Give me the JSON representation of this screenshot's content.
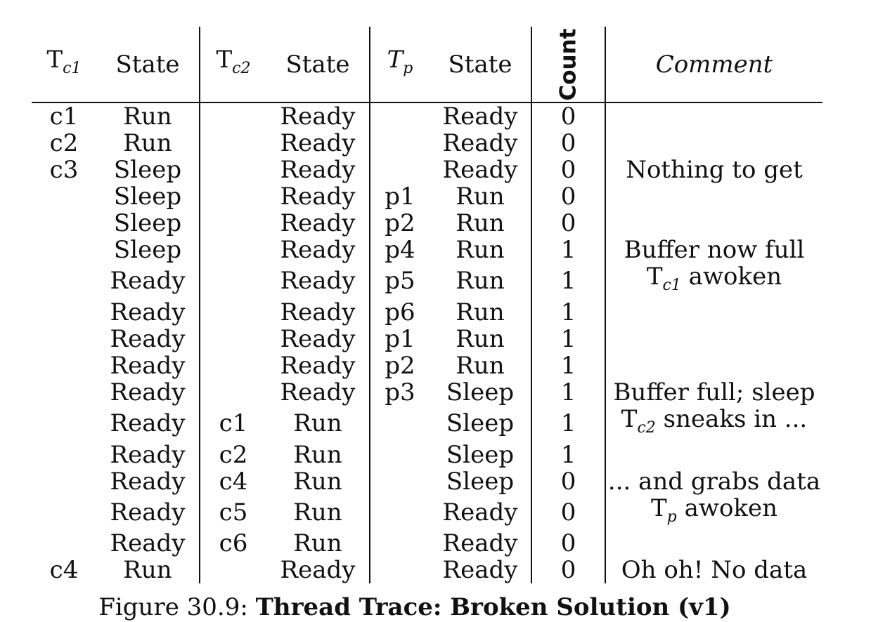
{
  "table": {
    "headers": [
      "Tc1",
      "State",
      "Tc2",
      "State",
      "Tp",
      "State",
      "Count",
      "Comment"
    ],
    "rows": [
      [
        "c1",
        "Run",
        "",
        "Ready",
        "",
        "Ready",
        "0",
        ""
      ],
      [
        "c2",
        "Run",
        "",
        "Ready",
        "",
        "Ready",
        "0",
        ""
      ],
      [
        "c3",
        "Sleep",
        "",
        "Ready",
        "",
        "Ready",
        "0",
        "Nothing to get"
      ],
      [
        "",
        "Sleep",
        "",
        "Ready",
        "p1",
        "Run",
        "0",
        ""
      ],
      [
        "",
        "Sleep",
        "",
        "Ready",
        "p2",
        "Run",
        "0",
        ""
      ],
      [
        "",
        "Sleep",
        "",
        "Ready",
        "p4",
        "Run",
        "1",
        "Buffer now full"
      ],
      [
        "",
        "Ready",
        "",
        "Ready",
        "p5",
        "Run",
        "1",
        "Tc1 awoken"
      ],
      [
        "",
        "Ready",
        "",
        "Ready",
        "p6",
        "Run",
        "1",
        ""
      ],
      [
        "",
        "Ready",
        "",
        "Ready",
        "p1",
        "Run",
        "1",
        ""
      ],
      [
        "",
        "Ready",
        "",
        "Ready",
        "p2",
        "Run",
        "1",
        ""
      ],
      [
        "",
        "Ready",
        "",
        "Ready",
        "p3",
        "Sleep",
        "1",
        "Buffer full; sleep"
      ],
      [
        "",
        "Ready",
        "c1",
        "Run",
        "",
        "Sleep",
        "1",
        "Tc2 sneaks in ..."
      ],
      [
        "",
        "Ready",
        "c2",
        "Run",
        "",
        "Sleep",
        "1",
        ""
      ],
      [
        "",
        "Ready",
        "c4",
        "Run",
        "",
        "Sleep",
        "0",
        "... and grabs data"
      ],
      [
        "",
        "Ready",
        "c5",
        "Run",
        "",
        "Ready",
        "0",
        "Tp awoken"
      ],
      [
        "",
        "Ready",
        "c6",
        "Run",
        "",
        "Ready",
        "0",
        ""
      ],
      [
        "c4",
        "Run",
        "",
        "Ready",
        "",
        "Ready",
        "0",
        "Oh oh! No data"
      ]
    ]
  },
  "caption": {
    "prefix": "Figure 30.9:",
    "title": "Thread Trace: Broken Solution (v1)"
  }
}
